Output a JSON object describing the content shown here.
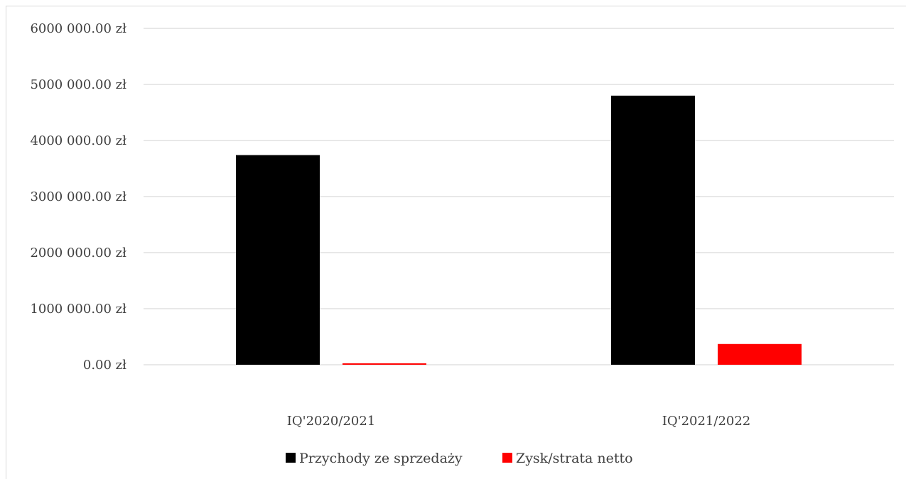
{
  "chart_data": {
    "type": "bar",
    "title": "",
    "xlabel": "",
    "ylabel": "",
    "categories": [
      "IQ'2020/2021",
      "IQ'2021/2022"
    ],
    "series": [
      {
        "name": "Przychody ze sprzedaży",
        "color": "#000000",
        "values": [
          3740000,
          4800000
        ]
      },
      {
        "name": "Zysk/strata netto",
        "color": "#ff0000",
        "values": [
          25000,
          370000
        ]
      }
    ],
    "ylim": [
      0,
      6000000
    ],
    "y_ticks": [
      0,
      1000000,
      2000000,
      3000000,
      4000000,
      5000000,
      6000000
    ],
    "y_tick_labels": [
      "0.00 zł",
      "1000 000.00 zł",
      "2000 000.00 zł",
      "3000 000.00 zł",
      "4000 000.00 zł",
      "5000 000.00 zł",
      "6000 000.00 zł"
    ],
    "grid": true,
    "legend_position": "bottom"
  }
}
